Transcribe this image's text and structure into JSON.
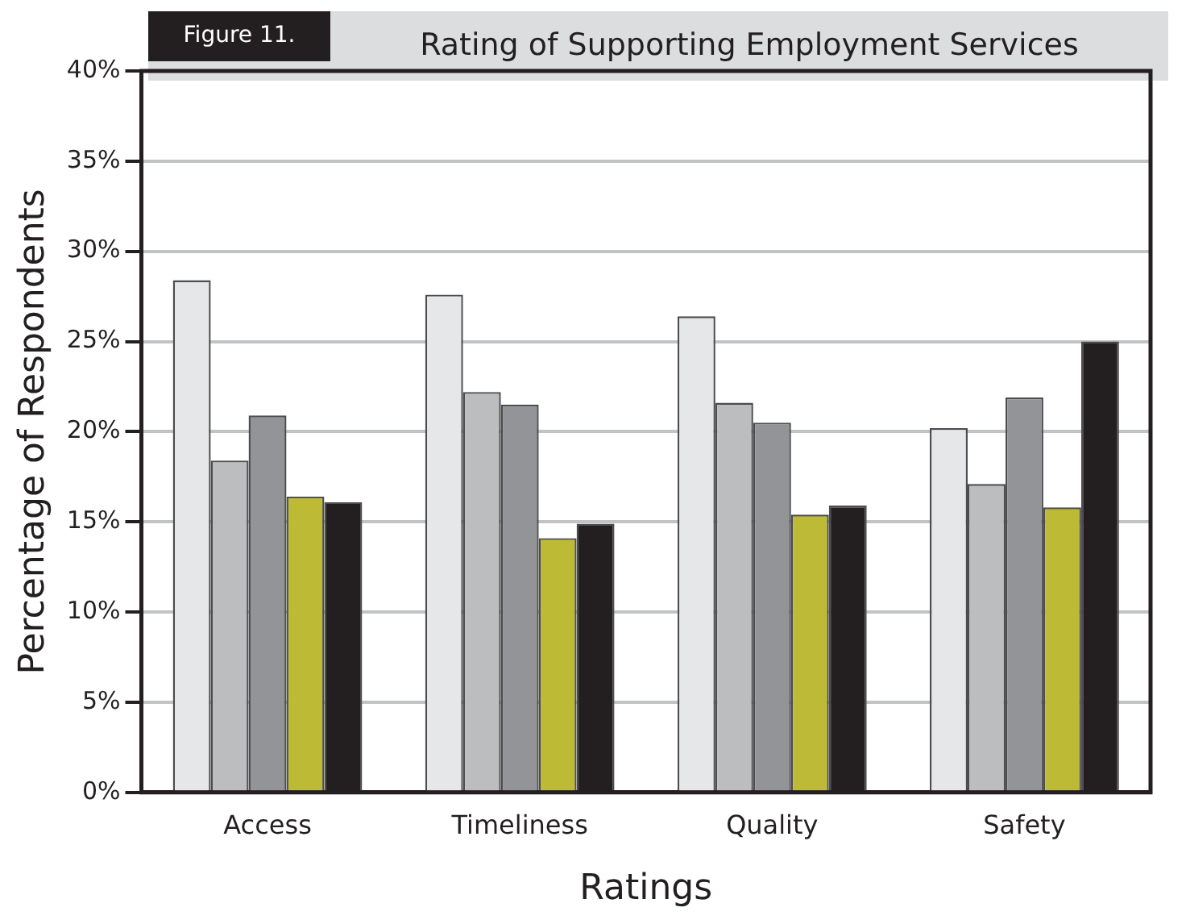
{
  "chart_data": {
    "type": "bar",
    "title": "Rating of Supporting Employment Services",
    "annotations": [
      "Figure 11."
    ],
    "xlabel": "Ratings",
    "ylabel": "Percentage of Respondents",
    "categories": [
      "Access",
      "Timeliness",
      "Quality",
      "Safety"
    ],
    "series": [
      {
        "color": "#e6e7e8",
        "values": [
          28.4,
          27.6,
          26.4,
          20.2
        ]
      },
      {
        "color": "#bcbdbf",
        "values": [
          18.4,
          22.2,
          21.6,
          17.1
        ]
      },
      {
        "color": "#929497",
        "values": [
          20.9,
          21.5,
          20.5,
          21.9
        ]
      },
      {
        "color": "#bdbb35",
        "values": [
          16.4,
          14.1,
          15.4,
          15.8
        ]
      },
      {
        "color": "#231f20",
        "values": [
          16.1,
          14.9,
          15.9,
          25
        ]
      }
    ],
    "ylim": [
      0,
      40
    ],
    "yticks": [
      {
        "value": 0,
        "label": "0%"
      },
      {
        "value": 5,
        "label": "5%"
      },
      {
        "value": 10,
        "label": "10%"
      },
      {
        "value": 15,
        "label": "15%"
      },
      {
        "value": 20,
        "label": "20%"
      },
      {
        "value": 25,
        "label": "25%"
      },
      {
        "value": 30,
        "label": "30%"
      },
      {
        "value": 35,
        "label": "35%"
      },
      {
        "value": 40,
        "label": "40%"
      }
    ],
    "grid": "y",
    "legend": false
  }
}
